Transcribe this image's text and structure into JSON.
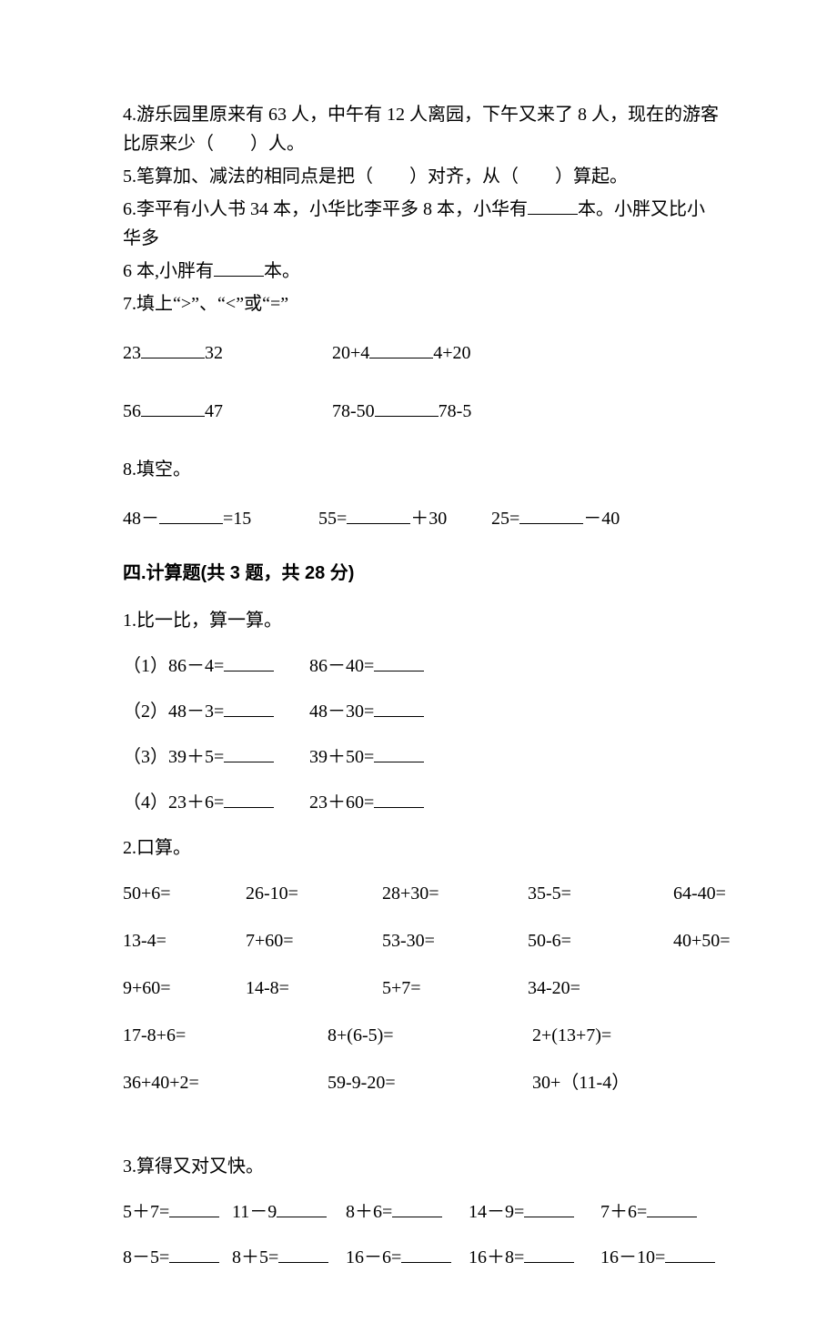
{
  "q4": "4.游乐园里原来有 63 人，中午有 12 人离园，下午又来了 8 人，现在的游客比原来少（　　）人。",
  "q5": "5.笔算加、减法的相同点是把（　　）对齐，从（　　）算起。",
  "q6_a": "6.李平有小人书 34 本，小华比李平多 8 本，小华有",
  "q6_b": "本。小胖又比小华多",
  "q6_c": "6 本,小胖有",
  "q6_d": "本。",
  "q7_title": "7.填上“>”、“<”或“=”",
  "q7_r1_a": "23",
  "q7_r1_b": "32",
  "q7_r1_c": "20+4",
  "q7_r1_d": "4+20",
  "q7_r2_a": "56",
  "q7_r2_b": "47",
  "q7_r2_c": "78-50",
  "q7_r2_d": "78-5",
  "q8_title": "8.填空。",
  "q8_a": "48－",
  "q8_b": "=15",
  "q8_c": "55=",
  "q8_d": "＋30",
  "q8_e": "25=",
  "q8_f": "－40",
  "sec4_header": "四.计算题(共 3 题，共 28 分)",
  "s4_q1_title": "1.比一比，算一算。",
  "s4_q1_rows": [
    [
      "（1）86－4=",
      "86－40="
    ],
    [
      "（2）48－3=",
      "48－30="
    ],
    [
      "（3）39＋5=",
      "39＋50="
    ],
    [
      "（4）23＋6=",
      "23＋60="
    ]
  ],
  "s4_q2_title": "2.口算。",
  "s4_q2_grid": [
    [
      "50+6=",
      "26-10=",
      "28+30=",
      "35-5=",
      "64-40="
    ],
    [
      "13-4=",
      "7+60=",
      "53-30=",
      "50-6=",
      "40+50="
    ],
    [
      "9+60=",
      "14-8=",
      "5+7=",
      "34-20=",
      ""
    ],
    [
      "17-8+6=",
      "8+(6-5)=",
      "",
      "2+(13+7)=",
      ""
    ],
    [
      "36+40+2=",
      "59-9-20=",
      "",
      "30+（11-4）",
      ""
    ]
  ],
  "s4_q3_title": "3.算得又对又快。",
  "s4_q3_rows": [
    [
      "5＋7=",
      "11－9",
      "8＋6=",
      "14－9=",
      "7＋6="
    ],
    [
      "8－5=",
      "8＋5=",
      "16－6=",
      "16＋8=",
      "16－10="
    ]
  ],
  "layout": {
    "q7_col1_w": 230,
    "q7_col2_w": 300,
    "q8_gap1": 70,
    "s4q1_col1_w": 205,
    "s4q2_cols_w": [
      135,
      150,
      160,
      160,
      110
    ],
    "s4q2_row4_cols_w": [
      225,
      225,
      0,
      220,
      0
    ],
    "s4q3_cols_w": [
      120,
      125,
      135,
      145,
      130
    ]
  },
  "style": {
    "background": "#ffffff",
    "text_color": "#000000",
    "font_body": "SimSun",
    "font_header": "SimHei",
    "font_size_pt": 15
  }
}
